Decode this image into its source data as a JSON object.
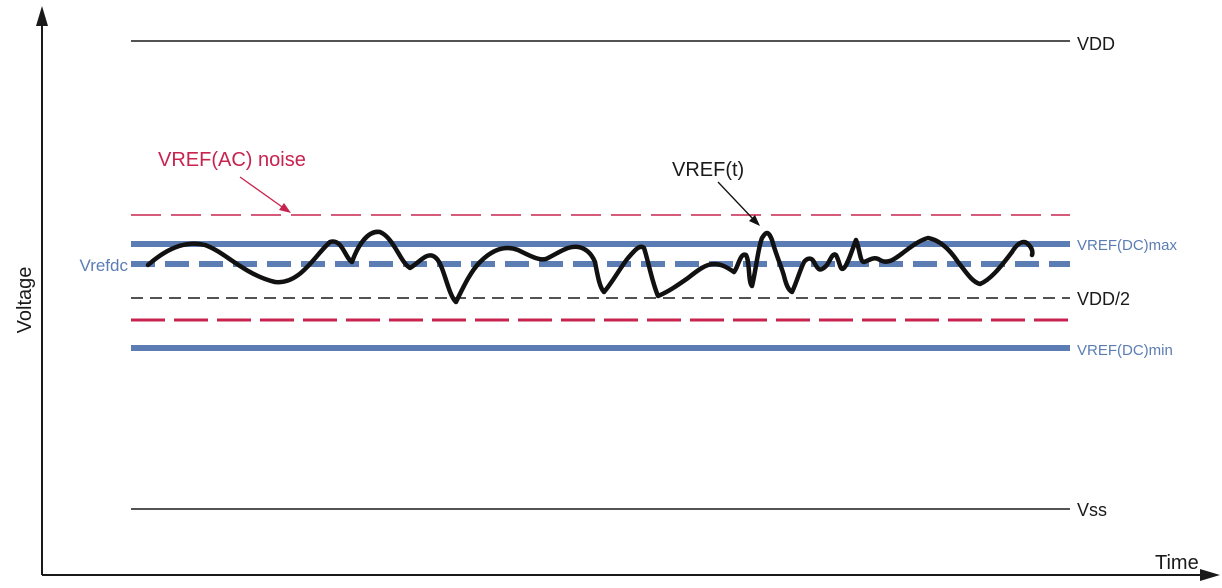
{
  "colors": {
    "axis": "#1a1a1a",
    "rail": "#1a1a1a",
    "dc_band": "#5b7db3",
    "ac_noise": "#c8234f",
    "vref_signal": "#111111"
  },
  "labels": {
    "vdd": "VDD",
    "vss": "Vss",
    "vdd_half": "VDD/2",
    "vref_dc_max": "VREF(DC)max",
    "vref_dc_min": "VREF(DC)min",
    "vrefdc": "Vrefdc",
    "vref_ac_noise": "VREF(AC) noise",
    "vref_t": "VREF(t)",
    "y_axis": "Voltage",
    "x_axis": "Time"
  }
}
